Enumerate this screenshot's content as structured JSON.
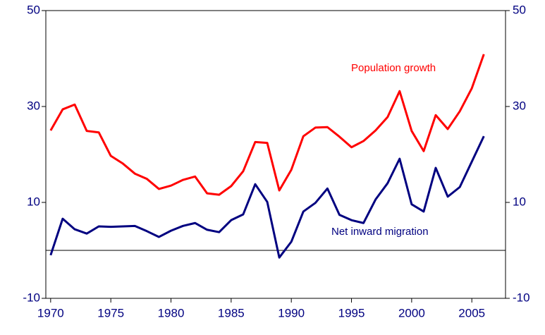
{
  "chart_data": {
    "type": "line",
    "x": [
      1970,
      1971,
      1972,
      1973,
      1974,
      1975,
      1976,
      1977,
      1978,
      1979,
      1980,
      1981,
      1982,
      1983,
      1984,
      1985,
      1986,
      1987,
      1988,
      1989,
      1990,
      1991,
      1992,
      1993,
      1994,
      1995,
      1996,
      1997,
      1998,
      1999,
      2000,
      2001,
      2002,
      2003,
      2004,
      2005,
      2006
    ],
    "series": [
      {
        "name": "Population growth",
        "color": "#ff0000",
        "values": [
          25.0,
          29.4,
          30.4,
          24.9,
          24.6,
          19.7,
          18.1,
          16.0,
          14.9,
          12.8,
          13.5,
          14.7,
          15.4,
          11.9,
          11.6,
          13.4,
          16.5,
          22.6,
          22.4,
          12.5,
          16.8,
          23.8,
          25.6,
          25.7,
          23.7,
          21.5,
          22.8,
          25.0,
          27.8,
          33.2,
          24.9,
          20.7,
          28.2,
          25.3,
          29.0,
          33.8,
          40.9
        ]
      },
      {
        "name": "Net inward migration",
        "color": "#000080",
        "values": [
          -1.0,
          6.6,
          4.4,
          3.5,
          5.0,
          4.9,
          5.0,
          5.1,
          4.0,
          2.8,
          4.1,
          5.1,
          5.7,
          4.3,
          3.8,
          6.3,
          7.5,
          13.8,
          10.1,
          -1.5,
          1.8,
          8.1,
          9.9,
          12.9,
          7.4,
          6.3,
          5.7,
          10.6,
          14.0,
          19.1,
          9.6,
          8.1,
          17.2,
          11.2,
          13.2,
          18.5,
          23.8
        ]
      }
    ],
    "xlim": [
      1969.6,
      2007.8
    ],
    "xticks": [
      1970,
      1975,
      1980,
      1985,
      1990,
      1995,
      2000,
      2005
    ],
    "ylim": [
      -10,
      50
    ],
    "yticks": [
      -10,
      10,
      30,
      50
    ],
    "y2lim": [
      -10,
      50
    ],
    "y2ticks": [
      -10,
      10,
      30,
      50
    ]
  }
}
